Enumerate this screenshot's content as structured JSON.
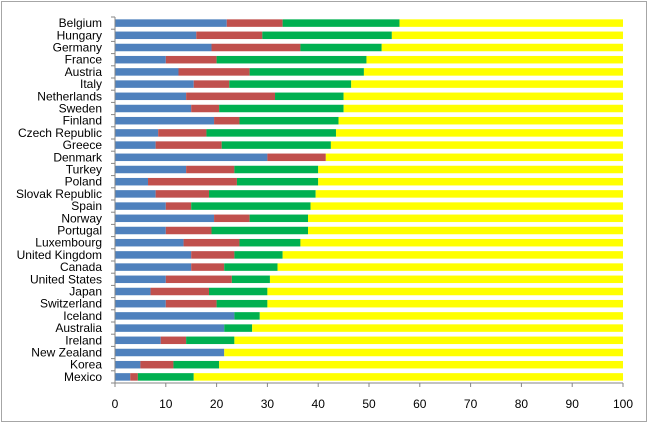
{
  "chart_data": {
    "type": "bar",
    "orientation": "horizontal",
    "stacked": true,
    "categories": [
      "Belgium",
      "Hungary",
      "Germany",
      "France",
      "Austria",
      "Italy",
      "Netherlands",
      "Sweden",
      "Finland",
      "Czech Republic",
      "Greece",
      "Denmark",
      "Turkey",
      "Poland",
      "Slovak Republic",
      "Spain",
      "Norway",
      "Portugal",
      "Luxembourg",
      "United Kingdom",
      "Canada",
      "United States",
      "Japan",
      "Switzerland",
      "Iceland",
      "Australia",
      "Ireland",
      "New Zealand",
      "Korea",
      "Mexico"
    ],
    "series": [
      {
        "color": "#4f81bd",
        "values": [
          22.0,
          16.0,
          19.0,
          10.0,
          12.5,
          15.5,
          14.0,
          15.0,
          19.5,
          8.5,
          8.0,
          30.0,
          14.0,
          6.5,
          8.0,
          10.0,
          19.5,
          10.0,
          13.5,
          15.0,
          15.0,
          10.0,
          7.0,
          10.0,
          23.5,
          21.5,
          9.0,
          21.5,
          5.0,
          3.0
        ]
      },
      {
        "color": "#c0504d",
        "values": [
          11.0,
          13.0,
          17.5,
          10.0,
          14.0,
          7.0,
          17.5,
          5.5,
          5.0,
          9.5,
          13.0,
          11.5,
          9.5,
          17.5,
          10.5,
          5.0,
          7.0,
          9.0,
          11.0,
          8.5,
          6.5,
          13.0,
          11.5,
          10.0,
          0.0,
          0.0,
          5.0,
          0.0,
          6.5,
          1.5
        ]
      },
      {
        "color": "#00b050",
        "values": [
          23.0,
          25.5,
          16.0,
          29.5,
          22.5,
          24.0,
          13.5,
          24.5,
          19.5,
          25.5,
          21.5,
          0.0,
          16.5,
          16.0,
          21.0,
          23.5,
          11.5,
          19.0,
          12.0,
          9.5,
          10.5,
          7.5,
          11.5,
          10.0,
          5.0,
          5.5,
          9.5,
          0.0,
          9.0,
          11.0
        ]
      },
      {
        "color": "#ffff00",
        "values": [
          44.0,
          45.5,
          47.5,
          50.5,
          51.0,
          53.5,
          55.0,
          55.0,
          56.0,
          56.5,
          57.5,
          58.5,
          60.0,
          60.0,
          60.5,
          61.5,
          62.0,
          62.0,
          63.5,
          67.0,
          68.0,
          69.5,
          70.0,
          70.0,
          71.5,
          73.0,
          76.5,
          78.5,
          79.5,
          84.5
        ]
      }
    ],
    "x_ticks": [
      0,
      10,
      20,
      30,
      40,
      50,
      60,
      70,
      80,
      90,
      100
    ],
    "xlim": [
      0,
      100
    ],
    "grid": false,
    "legend": false
  }
}
